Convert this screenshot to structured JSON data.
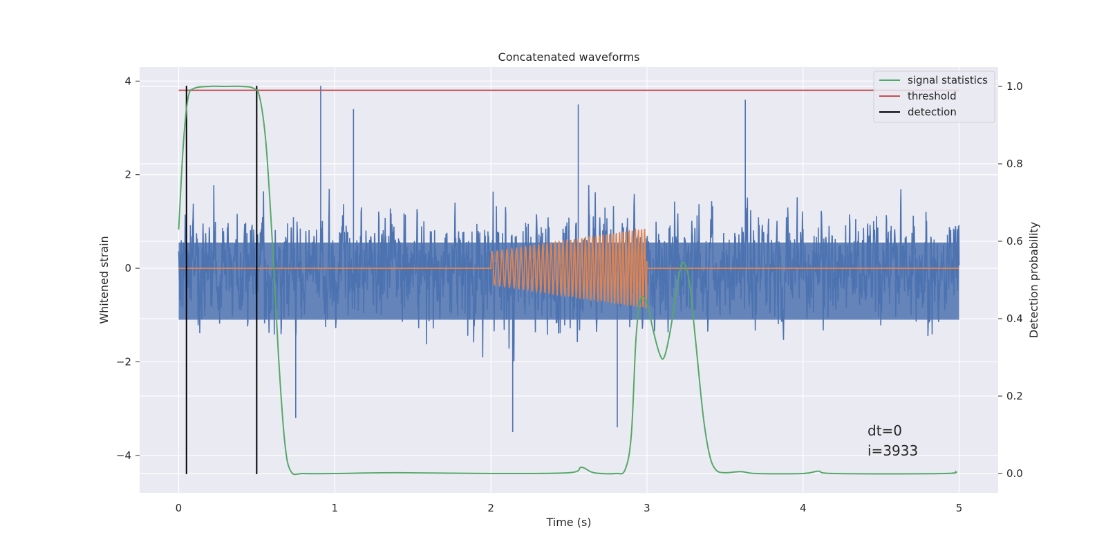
{
  "chart_data": {
    "type": "line",
    "title": "Concatenated waveforms",
    "xlabel": "Time (s)",
    "ylabel": "Whitened strain",
    "ylabel_right": "Detection probability",
    "xlim": [
      -0.25,
      5.25
    ],
    "ylim": [
      -4.8,
      4.3
    ],
    "ylim_right": [
      -0.05,
      1.05
    ],
    "xticks": [
      "0",
      "1",
      "2",
      "3",
      "4",
      "5"
    ],
    "yticks_left": [
      "4",
      "2",
      "0",
      "−2",
      "−4"
    ],
    "yticks_right": [
      "1.0",
      "0.8",
      "0.6",
      "0.4",
      "0.2",
      "0.0"
    ],
    "grid": true,
    "legend_position": "top-right",
    "legend": [
      "signal statistics",
      "threshold",
      "detection"
    ],
    "colors": {
      "strain": "#4c72b0",
      "injection": "#dd8452",
      "signal_statistics": "#55a868",
      "threshold": "#c44e52",
      "detection": "#000000",
      "background": "#eaeaf2",
      "grid": "#ffffff"
    },
    "series": [
      {
        "name": "signal statistics",
        "axis": "right",
        "points": [
          [
            0,
            0.63
          ],
          [
            0.03,
            0.85
          ],
          [
            0.06,
            0.97
          ],
          [
            0.1,
            0.995
          ],
          [
            0.2,
            1.0
          ],
          [
            0.3,
            1.0
          ],
          [
            0.4,
            1.0
          ],
          [
            0.48,
            0.995
          ],
          [
            0.52,
            0.97
          ],
          [
            0.56,
            0.85
          ],
          [
            0.6,
            0.6
          ],
          [
            0.64,
            0.3
          ],
          [
            0.68,
            0.08
          ],
          [
            0.72,
            0.005
          ],
          [
            0.8,
            0.0
          ],
          [
            1.0,
            0.0
          ],
          [
            1.4,
            0.002
          ],
          [
            2.0,
            0.0
          ],
          [
            2.5,
            0.002
          ],
          [
            2.58,
            0.016
          ],
          [
            2.66,
            0.002
          ],
          [
            2.8,
            0.0
          ],
          [
            2.86,
            0.01
          ],
          [
            2.9,
            0.1
          ],
          [
            2.93,
            0.35
          ],
          [
            2.96,
            0.45
          ],
          [
            3.0,
            0.44
          ],
          [
            3.04,
            0.37
          ],
          [
            3.08,
            0.31
          ],
          [
            3.11,
            0.3
          ],
          [
            3.15,
            0.37
          ],
          [
            3.2,
            0.5
          ],
          [
            3.23,
            0.545
          ],
          [
            3.27,
            0.5
          ],
          [
            3.31,
            0.35
          ],
          [
            3.36,
            0.15
          ],
          [
            3.4,
            0.05
          ],
          [
            3.44,
            0.01
          ],
          [
            3.5,
            0.002
          ],
          [
            3.6,
            0.005
          ],
          [
            3.7,
            0.0
          ],
          [
            4.0,
            0.0
          ],
          [
            4.1,
            0.006
          ],
          [
            4.2,
            0.0
          ],
          [
            4.9,
            0.0
          ],
          [
            4.98,
            0.006
          ]
        ]
      },
      {
        "name": "threshold",
        "axis": "right",
        "points": [
          [
            0,
            0.99
          ],
          [
            5,
            0.99
          ]
        ]
      },
      {
        "name": "detection",
        "axis": "left",
        "x": [
          0.05,
          0.5
        ],
        "ymin": -4.4,
        "ymax": 3.9
      }
    ],
    "strain": {
      "axis": "left",
      "x_range": [
        0,
        5
      ],
      "noise_std": 0.9,
      "spikes": [
        [
          0.91,
          3.9
        ],
        [
          0.75,
          -3.2
        ],
        [
          2.14,
          -3.5
        ],
        [
          2.81,
          -3.4
        ],
        [
          3.63,
          3.6
        ],
        [
          2.56,
          3.5
        ],
        [
          1.12,
          3.4
        ]
      ]
    },
    "injection": {
      "axis": "left",
      "x_range": [
        2.0,
        3.0
      ],
      "amplitude_range": [
        0.35,
        0.85
      ],
      "frequency_range_hz": [
        30,
        52
      ]
    },
    "annotations": [
      "dt=0",
      "i=3933"
    ]
  }
}
